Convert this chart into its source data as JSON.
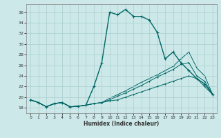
{
  "xlabel": "Humidex (Indice chaleur)",
  "xlim": [
    -0.5,
    23.5
  ],
  "ylim": [
    17.0,
    37.5
  ],
  "xticks": [
    0,
    1,
    2,
    3,
    4,
    5,
    6,
    7,
    8,
    9,
    10,
    11,
    12,
    13,
    14,
    15,
    16,
    17,
    18,
    19,
    20,
    21,
    22,
    23
  ],
  "yticks": [
    18,
    20,
    22,
    24,
    26,
    28,
    30,
    32,
    34,
    36
  ],
  "bg_color": "#cce8e8",
  "grid_color": "#aacece",
  "line_color": "#006666",
  "lines": [
    [
      19.5,
      19.0,
      18.2,
      18.8,
      19.0,
      18.2,
      18.3,
      18.5,
      22.0,
      26.5,
      36.0,
      35.5,
      36.5,
      35.2,
      35.2,
      34.5,
      32.2,
      27.2,
      28.5,
      26.5,
      25.0,
      23.5,
      22.5,
      20.5
    ],
    [
      19.5,
      19.0,
      18.2,
      18.8,
      19.0,
      18.2,
      18.3,
      18.5,
      18.8,
      19.0,
      19.3,
      19.5,
      20.0,
      20.5,
      21.0,
      21.5,
      22.0,
      22.5,
      23.0,
      23.5,
      24.0,
      23.5,
      22.0,
      20.5
    ],
    [
      19.5,
      19.0,
      18.2,
      18.8,
      19.0,
      18.2,
      18.3,
      18.5,
      18.8,
      19.0,
      19.5,
      20.2,
      20.8,
      21.5,
      22.2,
      23.0,
      23.8,
      24.5,
      25.2,
      26.2,
      26.5,
      24.0,
      23.0,
      20.5
    ],
    [
      19.5,
      19.0,
      18.2,
      18.8,
      19.0,
      18.2,
      18.3,
      18.5,
      18.8,
      19.0,
      19.8,
      20.5,
      21.2,
      22.0,
      22.8,
      23.5,
      24.2,
      25.0,
      25.8,
      27.2,
      28.5,
      25.5,
      24.0,
      20.5
    ]
  ]
}
